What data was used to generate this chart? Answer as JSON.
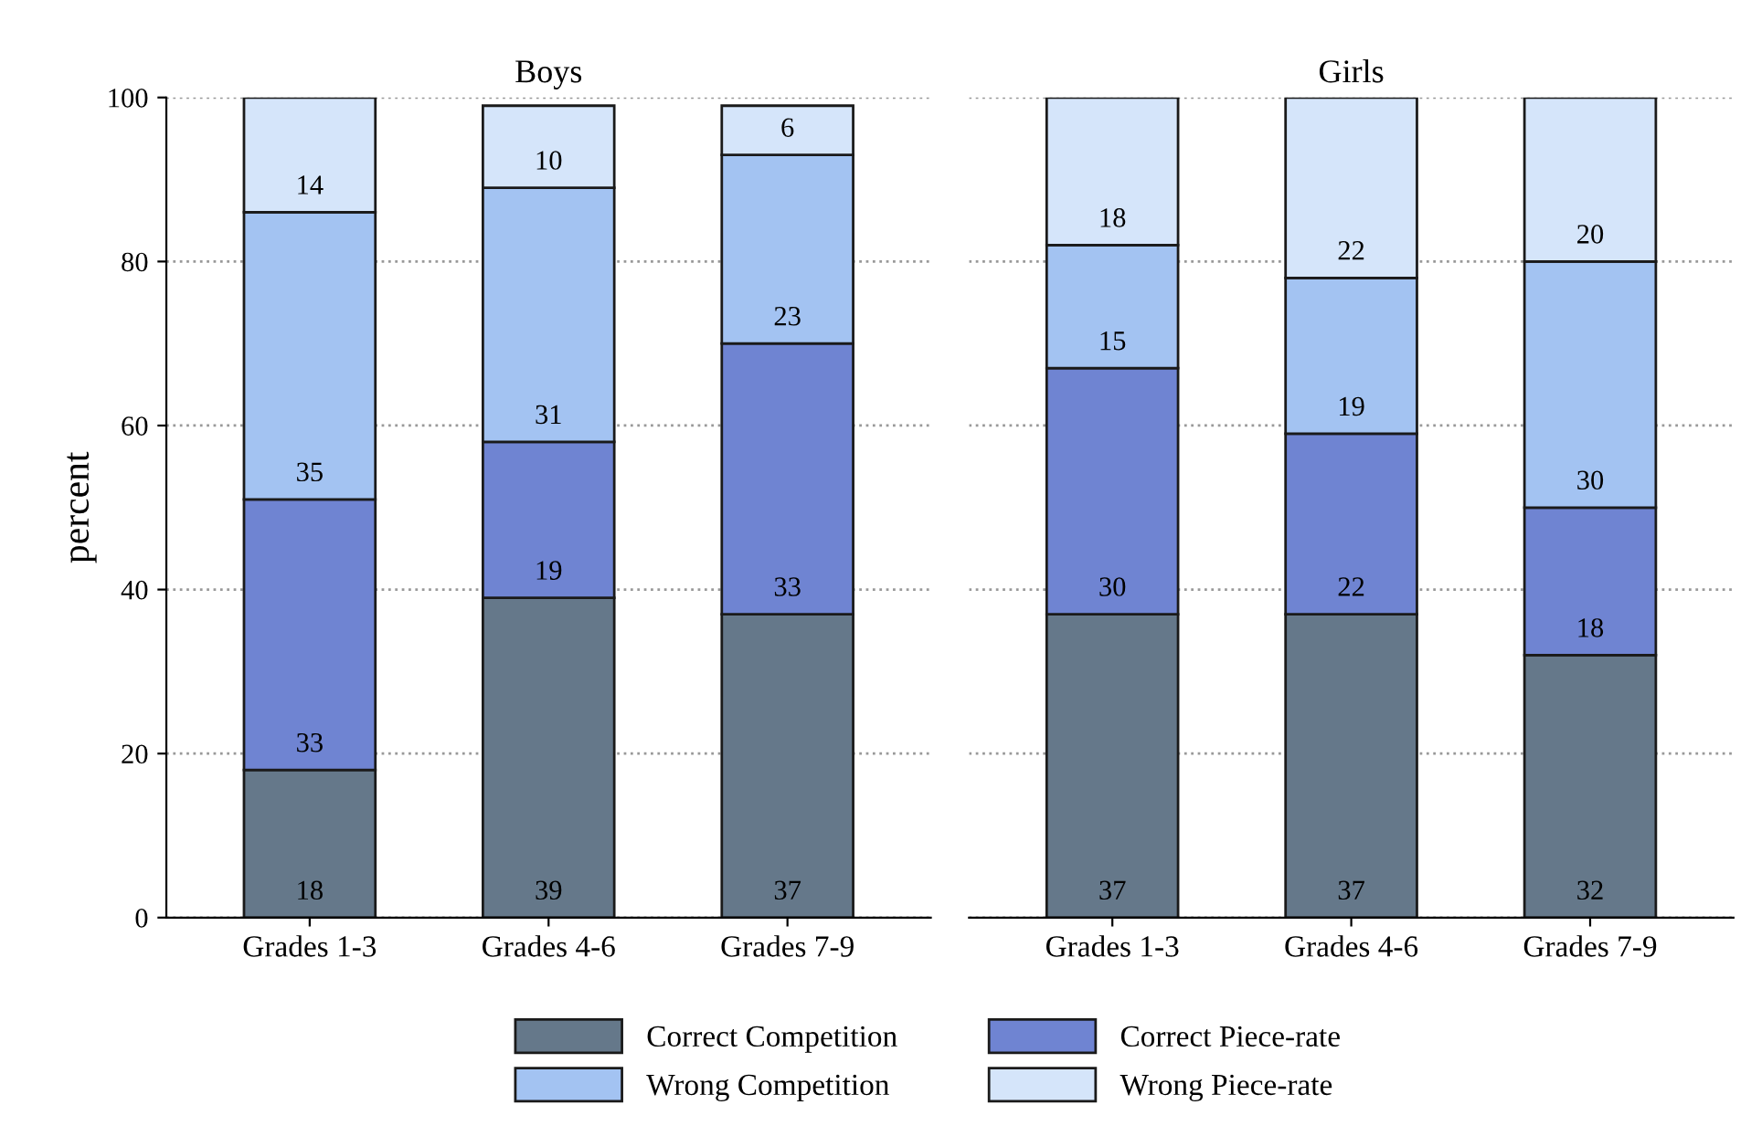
{
  "chart_data": [
    {
      "type": "bar",
      "stacked": true,
      "title": "Boys",
      "ylabel": "percent",
      "categories": [
        "Grades 1-3",
        "Grades 4-6",
        "Grades 7-9"
      ],
      "series": [
        {
          "name": "Correct Competition",
          "color": "#65788a",
          "values": [
            18,
            39,
            37
          ]
        },
        {
          "name": "Correct Piece-rate",
          "color": "#6f84d2",
          "values": [
            33,
            19,
            33
          ]
        },
        {
          "name": "Wrong Competition",
          "color": "#a3c3f2",
          "values": [
            35,
            31,
            23
          ]
        },
        {
          "name": "Wrong Piece-rate",
          "color": "#d5e5fa",
          "values": [
            14,
            10,
            6
          ]
        }
      ],
      "ylim": [
        0,
        100
      ],
      "yticks": [
        0,
        20,
        40,
        60,
        80,
        100
      ],
      "grid": "y",
      "data_labels": true,
      "legend": "bottom"
    },
    {
      "type": "bar",
      "stacked": true,
      "title": "Girls",
      "categories": [
        "Grades 1-3",
        "Grades 4-6",
        "Grades 7-9"
      ],
      "series": [
        {
          "color": "#65788a",
          "values": [
            37,
            37,
            32
          ]
        },
        {
          "color": "#6f84d2",
          "values": [
            30,
            22,
            18
          ]
        },
        {
          "color": "#a3c3f2",
          "values": [
            15,
            19,
            30
          ]
        },
        {
          "color": "#d5e5fa",
          "values": [
            18,
            22,
            20
          ]
        }
      ],
      "ylim": [
        0,
        100
      ],
      "yticks": [
        0,
        20,
        40,
        60,
        80,
        100
      ],
      "grid": "y",
      "data_labels": true,
      "tick_labels": "x"
    }
  ]
}
